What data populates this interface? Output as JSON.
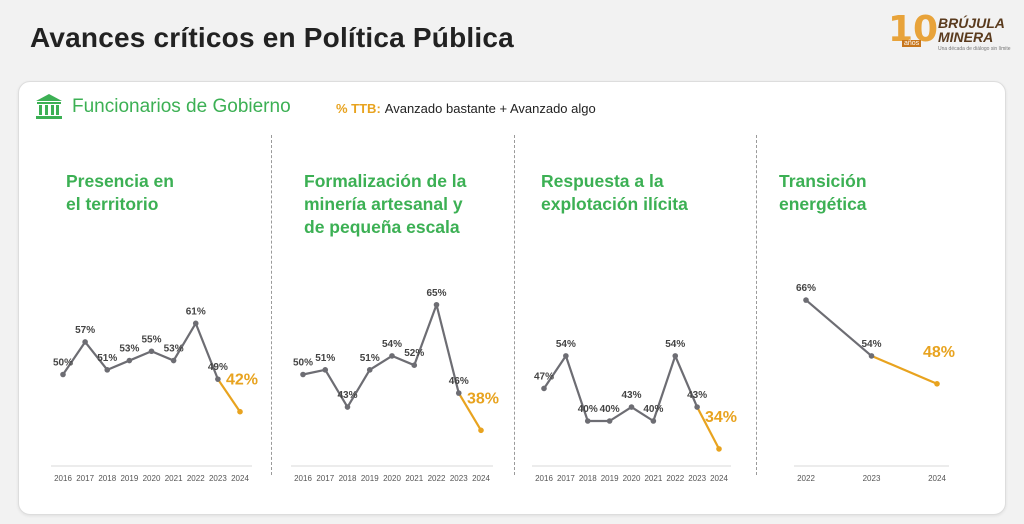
{
  "header": {
    "title": "Avances críticos en Política Pública"
  },
  "logo": {
    "number": "10",
    "anos": "años",
    "line1": "BRÚJULA",
    "line2": "MINERA",
    "tagline": "Una década de diálogo sin límite"
  },
  "section": {
    "title": "Funcionarios de Gobierno",
    "legend_key": "% TTB:",
    "legend_text": "Avanzado bastante + Avanzado algo"
  },
  "colors": {
    "green": "#3cb054",
    "gray": "#6d6d73",
    "orange": "#e8a31f"
  },
  "chart_data": [
    {
      "type": "line",
      "title": "Presencia en\nel territorio",
      "categories": [
        "2016",
        "2017",
        "2018",
        "2019",
        "2020",
        "2021",
        "2022",
        "2023",
        "2024"
      ],
      "values": [
        50,
        57,
        51,
        53,
        55,
        53,
        61,
        49,
        42
      ],
      "labels": [
        "50%",
        "57%",
        "51%",
        "53%",
        "55%",
        "53%",
        "61%",
        "49%",
        "42%"
      ],
      "ylim": [
        0,
        100
      ]
    },
    {
      "type": "line",
      "title": "Formalización de la\nminería artesanal y\nde pequeña escala",
      "categories": [
        "2016",
        "2017",
        "2018",
        "2019",
        "2020",
        "2021",
        "2022",
        "2023",
        "2024"
      ],
      "values": [
        50,
        51,
        43,
        51,
        54,
        52,
        65,
        46,
        38
      ],
      "labels": [
        "50%",
        "51%",
        "43%",
        "51%",
        "54%",
        "52%",
        "65%",
        "46%",
        "38%"
      ],
      "ylim": [
        0,
        100
      ]
    },
    {
      "type": "line",
      "title": "Respuesta a la\nexplotación ilícita",
      "categories": [
        "2016",
        "2017",
        "2018",
        "2019",
        "2020",
        "2021",
        "2022",
        "2023",
        "2024"
      ],
      "values": [
        47,
        54,
        40,
        40,
        43,
        40,
        54,
        43,
        34
      ],
      "labels": [
        "47%",
        "54%",
        "40%",
        "40%",
        "43%",
        "40%",
        "54%",
        "43%",
        "34%"
      ],
      "ylim": [
        0,
        100
      ]
    },
    {
      "type": "line",
      "title": "Transición\nenergética",
      "categories": [
        "2022",
        "2023",
        "2024"
      ],
      "values": [
        66,
        54,
        48
      ],
      "labels": [
        "66%",
        "54%",
        "48%"
      ],
      "ylim": [
        0,
        100
      ]
    }
  ]
}
